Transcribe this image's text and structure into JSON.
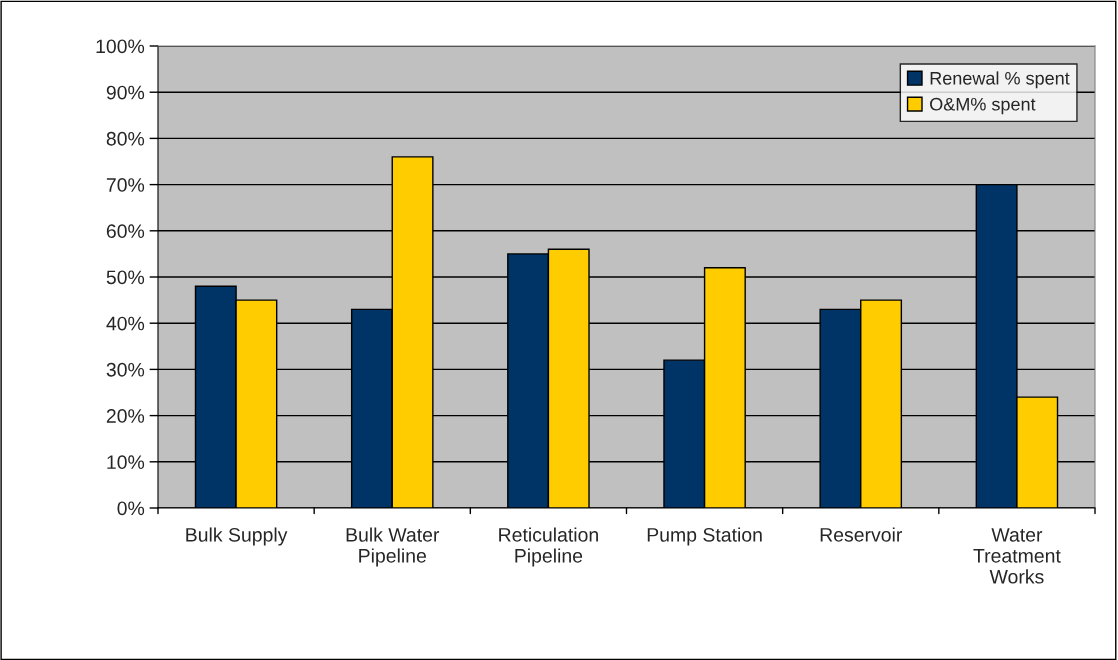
{
  "chart_data": {
    "type": "bar",
    "categories": [
      "Bulk Supply",
      "Bulk Water\nPipeline",
      "Reticulation\nPipeline",
      "Pump Station",
      "Reservoir",
      "Water\nTreatment\nWorks"
    ],
    "series": [
      {
        "name": "Renewal % spent",
        "color": "#003366",
        "values": [
          48,
          43,
          55,
          32,
          43,
          70
        ]
      },
      {
        "name": "O&M% spent",
        "color": "#ffcc00",
        "values": [
          45,
          76,
          56,
          52,
          45,
          24
        ]
      }
    ],
    "ylim": [
      0,
      100
    ],
    "yticks": [
      {
        "value": 0,
        "label": "0%"
      },
      {
        "value": 10,
        "label": "10%"
      },
      {
        "value": 20,
        "label": "20%"
      },
      {
        "value": 30,
        "label": "30%"
      },
      {
        "value": 40,
        "label": "40%"
      },
      {
        "value": 50,
        "label": "50%"
      },
      {
        "value": 60,
        "label": "60%"
      },
      {
        "value": 70,
        "label": "70%"
      },
      {
        "value": 80,
        "label": "80%"
      },
      {
        "value": 90,
        "label": "90%"
      },
      {
        "value": 100,
        "label": "100%"
      }
    ],
    "grid": "y",
    "legend": "top right"
  }
}
